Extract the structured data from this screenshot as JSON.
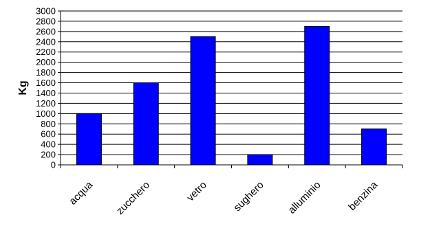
{
  "chart_data": {
    "type": "bar",
    "title": "",
    "xlabel": "",
    "ylabel": "Kg",
    "categories": [
      "acqua",
      "zucchero",
      "vetro",
      "sughero",
      "alluminio",
      "benzina"
    ],
    "values": [
      1000,
      1600,
      2500,
      200,
      2700,
      700
    ],
    "ylim": [
      0,
      3000
    ],
    "ytick_step": 200,
    "grid": true,
    "legend": "none",
    "bar_color": "#0000ff"
  }
}
